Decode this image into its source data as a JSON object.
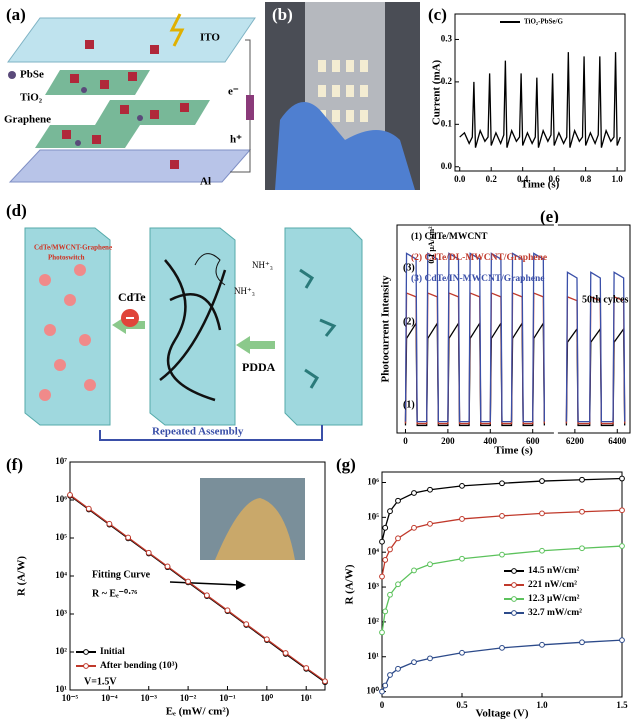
{
  "panel_labels": [
    "(a)",
    "(b)",
    "(c)",
    "(d)",
    "(e)",
    "(f)",
    "(g)"
  ],
  "diagram_a": {
    "ito": "ITO",
    "pbse": "PbSe",
    "tio2": "TiO₂",
    "graphene": "Graphene",
    "al": "Al",
    "electron": "e⁻",
    "hole": "h⁺"
  },
  "diagram_d": {
    "photoswitch_1": "CdTe/MWCNT-Graphene",
    "photoswitch_2": "Photoswitch",
    "cdte": "CdTe",
    "pdda": "PDDA",
    "nh3_a": "NH⁺₃",
    "nh3_b": "NH⁺₃",
    "repeated": "Repeated Assembly"
  },
  "chart_data": [
    {
      "type": "line",
      "xlabel": "Time (s)",
      "ylabel": "Current (mA)",
      "xlim": [
        -0.03,
        1.05
      ],
      "xticks": [
        {
          "value": 0,
          "label": "0.0"
        },
        0.2,
        0.4,
        0.6,
        0.8,
        {
          "value": 1,
          "label": "1.0"
        }
      ],
      "ylim": [
        -0.01,
        0.36
      ],
      "yticks": [
        {
          "value": 0,
          "label": "0.0"
        },
        0.1,
        0.2,
        0.3
      ],
      "legend": "upper center",
      "x": [
        0,
        0.03,
        0.06,
        0.08,
        0.09,
        0.1,
        0.13,
        0.16,
        0.18,
        0.19,
        0.2,
        0.23,
        0.26,
        0.28,
        0.29,
        0.3,
        0.33,
        0.36,
        0.38,
        0.39,
        0.4,
        0.43,
        0.46,
        0.48,
        0.49,
        0.5,
        0.53,
        0.56,
        0.58,
        0.59,
        0.6,
        0.63,
        0.66,
        0.68,
        0.69,
        0.7,
        0.73,
        0.76,
        0.78,
        0.79,
        0.8,
        0.83,
        0.86,
        0.88,
        0.89,
        0.9,
        0.93,
        0.96,
        0.98,
        0.99,
        1.0,
        1.02
      ],
      "series": [
        {
          "name": "TiO₂-PbSe/G",
          "color": "#000000",
          "values": [
            0.07,
            0.08,
            0.055,
            0.07,
            0.2,
            0.045,
            0.085,
            0.06,
            0.07,
            0.22,
            0.05,
            0.08,
            0.055,
            0.075,
            0.25,
            0.045,
            0.085,
            0.06,
            0.07,
            0.22,
            0.05,
            0.08,
            0.055,
            0.07,
            0.21,
            0.045,
            0.085,
            0.06,
            0.075,
            0.22,
            0.05,
            0.08,
            0.055,
            0.07,
            0.27,
            0.045,
            0.085,
            0.06,
            0.07,
            0.26,
            0.05,
            0.08,
            0.055,
            0.075,
            0.26,
            0.045,
            0.085,
            0.06,
            0.07,
            0.27,
            0.05,
            0.07
          ]
        }
      ]
    },
    {
      "type": "line",
      "xlabel": "Time (s)",
      "ylabel": "Photocurrent Intensity",
      "x_segments": [
        [
          -40,
          700
        ],
        [
          6120,
          6460
        ]
      ],
      "xticks": [
        0,
        200,
        400,
        600,
        6200,
        6400
      ],
      "ylim": [
        0,
        1.1
      ],
      "legend": "upper left",
      "legend_sample": false,
      "annotations": [
        "(1)",
        "(2)",
        "(3)",
        "50th cylces",
        "0.1 μA/cm²"
      ],
      "x": [
        0,
        5,
        50,
        55,
        100,
        105,
        150,
        155,
        200,
        205,
        250,
        255,
        300,
        305,
        350,
        355,
        400,
        405,
        450,
        455,
        500,
        505,
        550,
        555,
        600,
        605,
        650,
        655,
        700,
        6160,
        6165,
        6210,
        6215,
        6270,
        6275,
        6320,
        6325,
        6380,
        6385,
        6430,
        6435
      ],
      "series": [
        {
          "name": "(1) CdTe/MWCNT",
          "color": "#000000",
          "values": [
            0.04,
            0.5,
            0.58,
            0.04,
            0.04,
            0.5,
            0.58,
            0.04,
            0.04,
            0.5,
            0.58,
            0.04,
            0.04,
            0.5,
            0.58,
            0.04,
            0.04,
            0.5,
            0.58,
            0.04,
            0.04,
            0.5,
            0.58,
            0.04,
            0.04,
            0.5,
            0.58,
            0.04,
            null,
            0.04,
            0.48,
            0.55,
            0.04,
            0.04,
            0.48,
            0.55,
            0.04,
            0.04,
            0.48,
            0.55,
            0.04
          ]
        },
        {
          "name": "(2) CdTe/DL-MWCNT/Graphene",
          "color": "#c0392b",
          "values": [
            0.05,
            0.74,
            0.72,
            0.05,
            0.05,
            0.74,
            0.72,
            0.05,
            0.05,
            0.74,
            0.72,
            0.05,
            0.05,
            0.74,
            0.72,
            0.05,
            0.05,
            0.74,
            0.72,
            0.05,
            0.05,
            0.74,
            0.72,
            0.05,
            0.05,
            0.74,
            0.72,
            0.05,
            null,
            0.05,
            0.72,
            0.7,
            0.05,
            0.05,
            0.72,
            0.7,
            0.05,
            0.05,
            0.72,
            0.7,
            0.05
          ]
        },
        {
          "name": "(3) CdTe/IN-MWCNT/Graphene",
          "color": "#3a4fa8",
          "values": [
            0.06,
            0.95,
            0.92,
            0.06,
            0.06,
            0.95,
            0.92,
            0.06,
            0.06,
            0.95,
            0.92,
            0.06,
            0.06,
            0.95,
            0.92,
            0.06,
            0.06,
            0.95,
            0.92,
            0.06,
            0.06,
            0.95,
            0.92,
            0.06,
            0.06,
            0.95,
            0.92,
            0.06,
            null,
            0.06,
            0.85,
            0.82,
            0.06,
            0.06,
            0.85,
            0.82,
            0.06,
            0.06,
            0.85,
            0.82,
            0.06
          ]
        }
      ]
    },
    {
      "type": "line",
      "xlabel": "Eₑ (mW/ cm²)",
      "ylabel": "R (A/W)",
      "xscale": "log",
      "yscale": "log",
      "xlim": [
        1e-05,
        30
      ],
      "xticks": [
        {
          "value": 1e-05,
          "label": "10⁻⁵"
        },
        {
          "value": 0.0001,
          "label": "10⁻⁴"
        },
        {
          "value": 0.001,
          "label": "10⁻³"
        },
        {
          "value": 0.01,
          "label": "10⁻²"
        },
        {
          "value": 0.1,
          "label": "10⁻¹"
        },
        {
          "value": 1,
          "label": "10⁰"
        },
        {
          "value": 10,
          "label": "10¹"
        }
      ],
      "ylim": [
        10,
        10000000
      ],
      "yticks": [
        {
          "value": 10,
          "label": "10¹"
        },
        {
          "value": 100,
          "label": "10²"
        },
        {
          "value": 1000,
          "label": "10³"
        },
        {
          "value": 10000,
          "label": "10⁴"
        },
        {
          "value": 100000,
          "label": "10⁵"
        },
        {
          "value": 1000000,
          "label": "10⁶"
        },
        {
          "value": 10000000,
          "label": "10⁷"
        }
      ],
      "legend": "lower left",
      "annotations": [
        "Fitting Curve",
        "R ~ Eₑ⁻⁰·⁷⁶",
        "V=1.5V"
      ],
      "x": [
        1e-05,
        3e-05,
        0.0001,
        0.0003,
        0.001,
        0.003,
        0.01,
        0.03,
        0.1,
        0.3,
        1,
        3,
        10,
        30
      ],
      "series": [
        {
          "name": "Initial",
          "color": "#000000",
          "marker": "circle",
          "values": [
            1300000,
            564000,
            226000,
            98000,
            39300,
            17100,
            6830,
            2960,
            1190,
            515,
            206,
            89,
            36,
            16
          ]
        },
        {
          "name": "After bending (10³)",
          "color": "#c0392b",
          "marker": "circle",
          "values": [
            1360000,
            590000,
            236000,
            103000,
            41000,
            17900,
            7150,
            3100,
            1250,
            540,
            216,
            94,
            38,
            17
          ]
        }
      ]
    },
    {
      "type": "line",
      "xlabel": "Voltage (V)",
      "ylabel": "R (A/W)",
      "yscale": "log",
      "xlim": [
        0,
        1.5
      ],
      "xticks": [
        0,
        0.5,
        {
          "value": 1,
          "label": "1.0"
        },
        1.5
      ],
      "ylim": [
        0.7,
        2000000
      ],
      "yticks": [
        {
          "value": 1,
          "label": "10⁰"
        },
        {
          "value": 10,
          "label": "10¹"
        },
        {
          "value": 100,
          "label": "10²"
        },
        {
          "value": 1000,
          "label": "10³"
        },
        {
          "value": 10000,
          "label": "10⁴"
        },
        {
          "value": 100000,
          "label": "10⁵"
        },
        {
          "value": 1000000,
          "label": "10⁶"
        }
      ],
      "legend": "lower right",
      "x": [
        0,
        0.02,
        0.05,
        0.1,
        0.2,
        0.3,
        0.5,
        0.75,
        1.0,
        1.25,
        1.5
      ],
      "series": [
        {
          "name": "14.5 nW/cm²",
          "color": "#000000",
          "marker": "circle",
          "values": [
            20000,
            50000,
            150000,
            300000,
            500000,
            620000,
            800000,
            950000,
            1100000,
            1200000,
            1300000
          ]
        },
        {
          "name": "221 nW/cm²",
          "color": "#c0392b",
          "marker": "circle",
          "values": [
            2000,
            6000,
            12000,
            25000,
            50000,
            65000,
            90000,
            110000,
            130000,
            145000,
            160000
          ]
        },
        {
          "name": "12.3 μW/cm²",
          "color": "#5cc25c",
          "marker": "circle",
          "values": [
            50,
            200,
            600,
            1200,
            3000,
            4500,
            6500,
            8500,
            11000,
            13000,
            15000
          ]
        },
        {
          "name": "32.7 mW/cm²",
          "color": "#2c4a8a",
          "marker": "circle",
          "values": [
            1,
            1.5,
            3,
            4.5,
            7,
            9,
            13,
            18,
            22,
            26,
            30
          ]
        }
      ]
    }
  ]
}
